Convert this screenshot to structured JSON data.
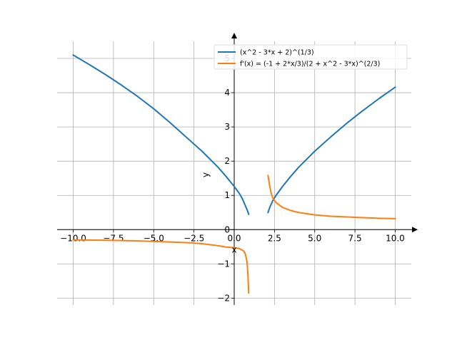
{
  "chart_data": {
    "type": "line",
    "title": "",
    "xlabel": "x",
    "ylabel": "y",
    "xlim": [
      -11.0,
      11.0
    ],
    "ylim": [
      -2.2,
      5.5
    ],
    "grid": true,
    "legend_position": "top-right",
    "x_ticks": [
      -10.0,
      -7.5,
      -5.0,
      -2.5,
      0.0,
      2.5,
      5.0,
      7.5,
      10.0
    ],
    "x_tick_labels": [
      "−10.0",
      "−7.5",
      "−5.0",
      "−2.5",
      "0.0",
      "2.5",
      "5.0",
      "7.5",
      "10.0"
    ],
    "y_ticks": [
      -2,
      -1,
      0,
      1,
      2,
      3,
      4,
      5
    ],
    "y_tick_labels": [
      "−2",
      "−1",
      "0",
      "1",
      "2",
      "3",
      "4",
      "5"
    ],
    "series": [
      {
        "name": "(x^2 - 3*x + 2)^(1/3)",
        "color": "#1f77b4",
        "segments": [
          {
            "x": [
              -10.0,
              -9.0,
              -8.0,
              -7.0,
              -6.0,
              -5.0,
              -4.0,
              -3.0,
              -2.0,
              -1.0,
              -0.5,
              0.0,
              0.3,
              0.5,
              0.7,
              0.8,
              0.9
            ],
            "y": [
              5.1,
              4.82,
              4.53,
              4.22,
              3.89,
              3.53,
              3.13,
              2.71,
              2.29,
              1.82,
              1.55,
              1.26,
              1.07,
              0.91,
              0.69,
              0.58,
              0.45
            ]
          },
          {
            "x": [
              2.1,
              2.2,
              2.4,
              2.6,
              3.0,
              3.5,
              4.0,
              5.0,
              6.0,
              7.0,
              8.0,
              9.0,
              10.0
            ],
            "y": [
              0.5,
              0.64,
              0.85,
              1.0,
              1.26,
              1.55,
              1.82,
              2.29,
              2.71,
              3.11,
              3.48,
              3.83,
              4.16
            ]
          }
        ]
      },
      {
        "name": "f'(x) = (-1 + 2*x/3)/(2 + x^2 - 3*x)^(2/3)",
        "color": "#ff7f0e",
        "segments": [
          {
            "x": [
              -10.0,
              -8.0,
              -6.0,
              -4.0,
              -3.0,
              -2.0,
              -1.0,
              -0.5,
              0.0,
              0.3,
              0.5,
              0.6,
              0.7,
              0.8,
              0.85,
              0.9
            ],
            "y": [
              -0.3,
              -0.31,
              -0.33,
              -0.36,
              -0.38,
              -0.41,
              -0.47,
              -0.51,
              -0.53,
              -0.55,
              -0.6,
              -0.63,
              -0.72,
              -0.95,
              -1.3,
              -1.85
            ]
          },
          {
            "x": [
              2.1,
              2.2,
              2.3,
              2.4,
              2.6,
              3.0,
              3.5,
              4.0,
              5.0,
              6.0,
              7.0,
              8.0,
              9.0,
              10.0
            ],
            "y": [
              1.58,
              1.29,
              1.06,
              0.92,
              0.79,
              0.65,
              0.56,
              0.5,
              0.43,
              0.39,
              0.37,
              0.35,
              0.33,
              0.32
            ]
          }
        ]
      }
    ]
  }
}
